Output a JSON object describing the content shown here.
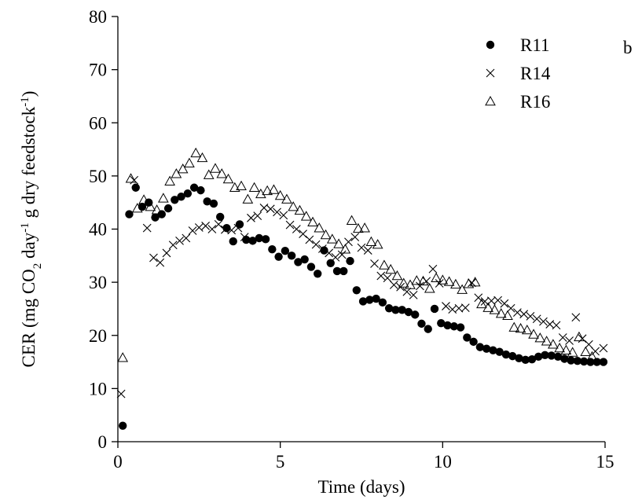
{
  "chart_data": {
    "type": "scatter",
    "panel_label": "b",
    "xlabel": "Time (days)",
    "ylabel": {
      "parts": [
        {
          "text": "CER (mg CO",
          "shift": "none"
        },
        {
          "text": "2",
          "shift": "sub"
        },
        {
          "text": " day",
          "shift": "none"
        },
        {
          "text": "-1",
          "shift": "super"
        },
        {
          "text": " g dry feedstock",
          "shift": "none"
        },
        {
          "text": "-1",
          "shift": "super"
        },
        {
          "text": ")",
          "shift": "none"
        }
      ]
    },
    "xlim": [
      0,
      15
    ],
    "ylim": [
      0,
      80
    ],
    "xticks": [
      "0",
      "5",
      "10",
      "15"
    ],
    "yticks": [
      "0",
      "10",
      "20",
      "30",
      "40",
      "50",
      "60",
      "70",
      "80"
    ],
    "grid": false,
    "legend_position": "top-right",
    "series": [
      {
        "name": "R11",
        "marker": "filled-circle",
        "x": [
          0.15,
          0.35,
          0.55,
          0.75,
          0.95,
          1.15,
          1.35,
          1.55,
          1.75,
          1.95,
          2.15,
          2.35,
          2.55,
          2.75,
          2.95,
          3.15,
          3.35,
          3.55,
          3.75,
          3.95,
          4.15,
          4.35,
          4.55,
          4.75,
          4.95,
          5.15,
          5.35,
          5.55,
          5.75,
          5.95,
          6.15,
          6.35,
          6.55,
          6.75,
          6.95,
          7.15,
          7.35,
          7.55,
          7.75,
          7.95,
          8.15,
          8.35,
          8.55,
          8.75,
          8.95,
          9.15,
          9.35,
          9.55,
          9.75,
          9.95,
          10.15,
          10.35,
          10.55,
          10.75,
          10.95,
          11.15,
          11.35,
          11.55,
          11.75,
          11.95,
          12.15,
          12.35,
          12.55,
          12.75,
          12.95,
          13.15,
          13.35,
          13.55,
          13.75,
          13.95,
          14.15,
          14.35,
          14.55,
          14.75,
          14.95
        ],
        "y": [
          3,
          42.8,
          47.8,
          44.2,
          45,
          42.2,
          42.8,
          43.9,
          45.5,
          46.1,
          46.7,
          47.8,
          47.3,
          45.2,
          44.8,
          42.3,
          40.2,
          37.7,
          40.9,
          38.0,
          37.8,
          38.3,
          38.1,
          36.2,
          34.8,
          35.9,
          35.0,
          33.8,
          34.3,
          32.9,
          31.6,
          36.0,
          33.6,
          32.1,
          32.1,
          34.0,
          28.5,
          26.4,
          26.7,
          26.9,
          26.2,
          25.1,
          24.8,
          24.8,
          24.4,
          23.9,
          22.2,
          21.2,
          25.0,
          22.3,
          21.9,
          21.7,
          21.5,
          19.6,
          18.8,
          17.8,
          17.5,
          17.2,
          16.9,
          16.4,
          16.1,
          15.7,
          15.4,
          15.5,
          16.0,
          16.3,
          16.2,
          16.0,
          15.6,
          15.3,
          15.2,
          15.1,
          15.0,
          15.0,
          15.0
        ]
      },
      {
        "name": "R14",
        "marker": "cross",
        "x": [
          0.1,
          0.5,
          0.9,
          1.1,
          1.3,
          1.5,
          1.7,
          1.9,
          2.1,
          2.3,
          2.5,
          2.7,
          2.9,
          3.1,
          3.3,
          3.5,
          3.7,
          3.9,
          4.1,
          4.3,
          4.5,
          4.7,
          4.9,
          5.1,
          5.3,
          5.5,
          5.7,
          5.9,
          6.1,
          6.3,
          6.5,
          6.7,
          6.9,
          7.1,
          7.3,
          7.5,
          7.7,
          7.9,
          8.1,
          8.3,
          8.5,
          8.7,
          8.9,
          9.1,
          9.3,
          9.5,
          9.7,
          9.9,
          10.1,
          10.3,
          10.5,
          10.7,
          10.9,
          11.1,
          11.3,
          11.5,
          11.7,
          11.9,
          12.1,
          12.3,
          12.5,
          12.7,
          12.9,
          13.1,
          13.3,
          13.5,
          13.7,
          13.9,
          14.1,
          14.3,
          14.5,
          14.7,
          14.95
        ],
        "y": [
          9,
          49.2,
          40.2,
          34.6,
          33.7,
          35.5,
          37.0,
          37.8,
          38.3,
          39.7,
          40.3,
          40.6,
          40.0,
          40.9,
          39.9,
          39.8,
          40.2,
          38.5,
          42.1,
          42.5,
          44.0,
          43.8,
          43.2,
          42.6,
          40.8,
          40.0,
          39.1,
          38.0,
          37.1,
          36.3,
          35.5,
          34.7,
          35.2,
          37.6,
          38.5,
          36.5,
          36.0,
          33.5,
          31.2,
          30.8,
          29.5,
          29.1,
          28.2,
          27.6,
          29.3,
          30.2,
          32.5,
          29.8,
          25.5,
          24.9,
          25.1,
          25.2,
          29.9,
          27.1,
          26.4,
          26.5,
          26.6,
          26.0,
          25.1,
          24.3,
          24.0,
          23.6,
          23.1,
          22.6,
          22.1,
          21.9,
          19.6,
          19.0,
          23.4,
          19.4,
          18.3,
          17.0,
          17.6
        ]
      },
      {
        "name": "R16",
        "marker": "open-triangle",
        "x": [
          0.15,
          0.4,
          0.6,
          0.8,
          1.0,
          1.2,
          1.4,
          1.6,
          1.8,
          2.0,
          2.2,
          2.4,
          2.6,
          2.8,
          3.0,
          3.2,
          3.4,
          3.6,
          3.8,
          4.0,
          4.2,
          4.4,
          4.6,
          4.8,
          5.0,
          5.2,
          5.4,
          5.6,
          5.8,
          6.0,
          6.2,
          6.4,
          6.6,
          6.8,
          7.0,
          7.2,
          7.4,
          7.6,
          7.8,
          8.0,
          8.2,
          8.4,
          8.6,
          8.8,
          9.0,
          9.2,
          9.4,
          9.6,
          9.8,
          10.0,
          10.2,
          10.4,
          10.6,
          10.8,
          11.0,
          11.2,
          11.4,
          11.6,
          11.8,
          12.0,
          12.2,
          12.4,
          12.6,
          12.8,
          13.0,
          13.2,
          13.4,
          13.6,
          13.8,
          14.0,
          14.2,
          14.4,
          14.6
        ],
        "y": [
          15.8,
          49.5,
          43.9,
          45.5,
          44.2,
          43.6,
          45.8,
          49.0,
          50.4,
          51.3,
          52.4,
          54.3,
          53.4,
          50.2,
          51.4,
          50.4,
          49.4,
          47.8,
          48.1,
          45.6,
          47.8,
          46.6,
          47.2,
          47.4,
          46.3,
          45.6,
          44.2,
          43.5,
          42.4,
          41.3,
          40.2,
          38.9,
          38.1,
          37.2,
          36.2,
          41.6,
          40.1,
          40.2,
          37.6,
          37.1,
          33.2,
          32.4,
          31.2,
          29.8,
          29.5,
          30.3,
          30.2,
          28.8,
          30.8,
          30.4,
          30.1,
          29.6,
          28.6,
          29.7,
          30.0,
          25.9,
          25.2,
          24.8,
          24.1,
          23.7,
          21.5,
          21.3,
          21.0,
          20.2,
          19.5,
          18.9,
          18.3,
          17.6,
          17.2,
          16.8,
          19.7,
          16.9,
          16.0
        ]
      }
    ]
  }
}
